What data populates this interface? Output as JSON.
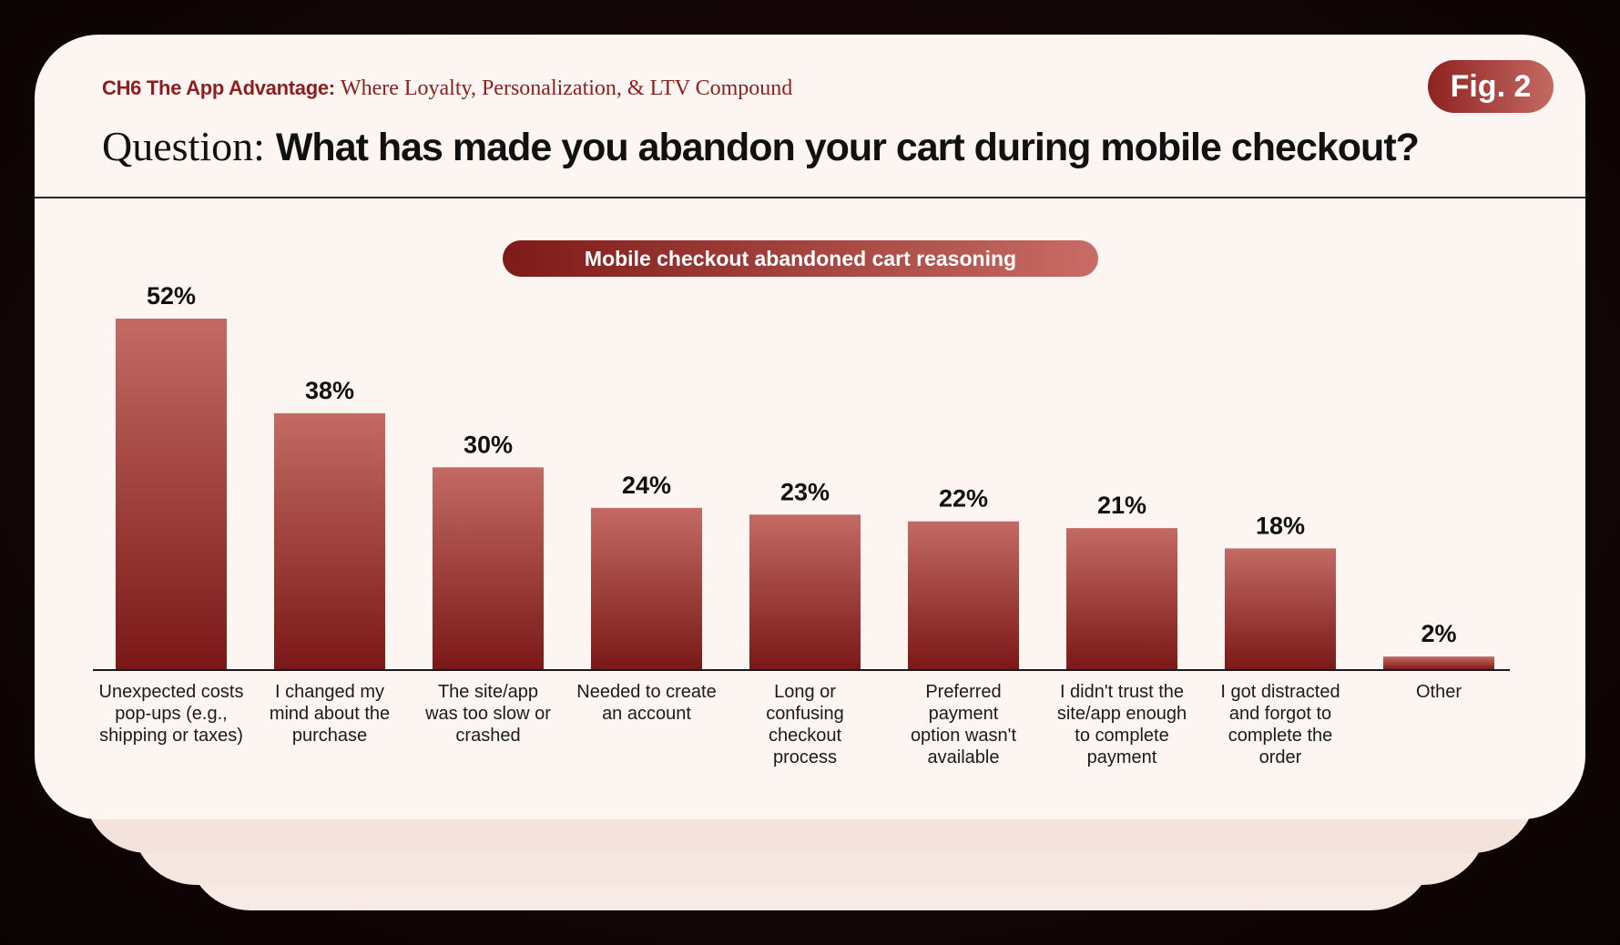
{
  "header": {
    "chapter_label": "CH6 The App Advantage:",
    "chapter_title": "Where Loyalty, Personalization, & LTV Compound",
    "fig_badge": "Fig. 2",
    "question_prefix": "Question:",
    "question_text": "What has made you abandon your cart during mobile checkout?"
  },
  "colors": {
    "accent": "#8c1f1d",
    "bar_top": "#c46a64",
    "bar_bottom": "#7a1816",
    "card": "#fcf5f2"
  },
  "chart_data": {
    "type": "bar",
    "title": "Mobile checkout abandoned cart reasoning",
    "categories": [
      [
        "Unexpected costs",
        "pop-ups (e.g.,",
        "shipping or taxes)"
      ],
      [
        "I changed my",
        "mind about the",
        "purchase"
      ],
      [
        "The site/app",
        "was too slow or",
        "crashed"
      ],
      [
        "Needed to create",
        "an account"
      ],
      [
        "Long or",
        "confusing",
        "checkout",
        "process"
      ],
      [
        "Preferred",
        "payment",
        "option wasn't",
        "available"
      ],
      [
        "I didn't trust the",
        "site/app enough",
        "to complete",
        "payment"
      ],
      [
        "I got distracted",
        "and forgot to",
        "complete the",
        "order"
      ],
      [
        "Other"
      ]
    ],
    "values": [
      52,
      38,
      30,
      24,
      23,
      22,
      21,
      18,
      2
    ],
    "value_labels": [
      "52%",
      "38%",
      "30%",
      "24%",
      "23%",
      "22%",
      "21%",
      "18%",
      "2%"
    ],
    "ylim": [
      0,
      52
    ],
    "grid": false,
    "legend": "none",
    "xlabel": "",
    "ylabel": ""
  }
}
